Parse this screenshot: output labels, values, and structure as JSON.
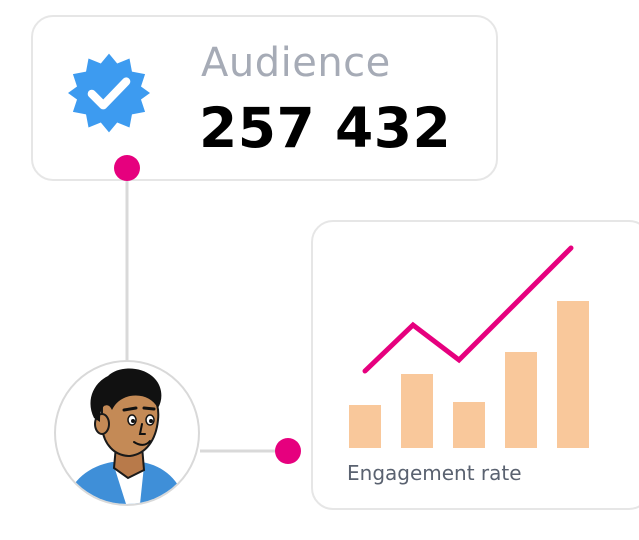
{
  "audience": {
    "label": "Audience",
    "value": "257 432",
    "badge_icon": "verified-badge-icon"
  },
  "engagement": {
    "label": "Engagement rate"
  },
  "avatar": {
    "icon": "user-avatar-icon"
  },
  "colors": {
    "accent": "#e6007e",
    "badge": "#3d9bf0",
    "bar": "#f9c89b",
    "connector": "#d9d9d9",
    "card_border": "#e6e6e6"
  },
  "chart_data": {
    "type": "bar",
    "categories": [
      "",
      "",
      "",
      "",
      ""
    ],
    "values": [
      43,
      74,
      46,
      96,
      147
    ],
    "trend_line": [
      77,
      123,
      88,
      200
    ],
    "title": "",
    "xlabel": "Engagement rate",
    "ylabel": ""
  }
}
